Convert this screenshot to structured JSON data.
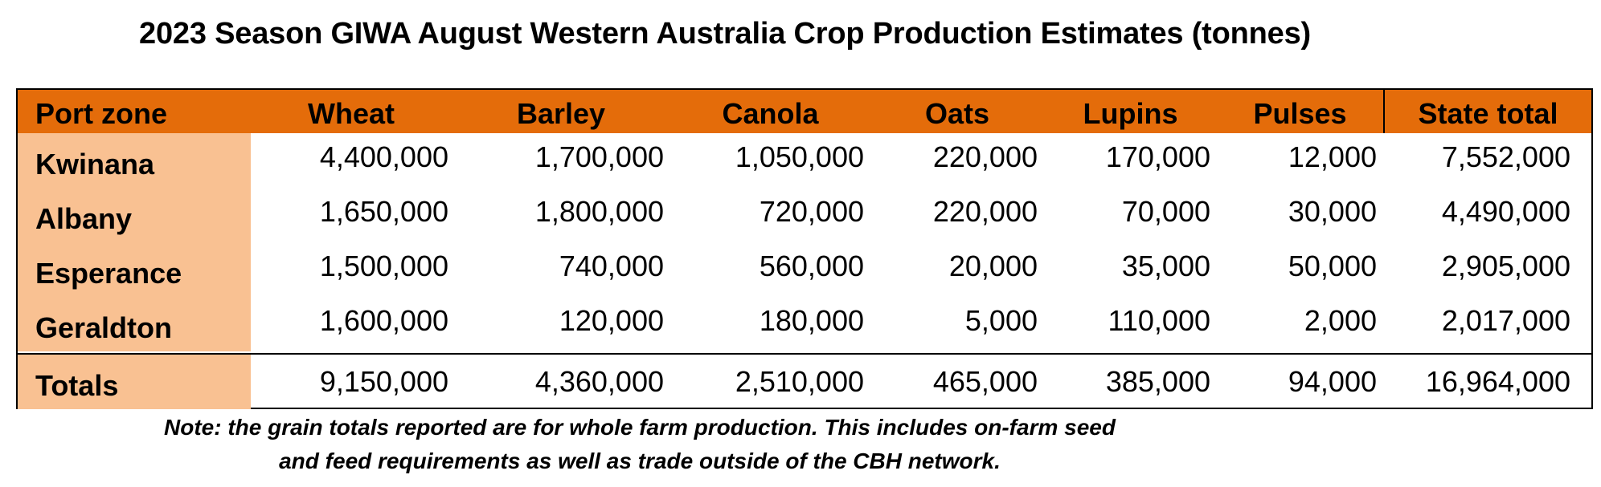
{
  "title": "2023 Season GIWA August Western Australia Crop Production Estimates (tonnes)",
  "colors": {
    "header_bg": "#e46c0a",
    "zone_column_bg": "#f9c192"
  },
  "table": {
    "headers": {
      "zone": "Port zone",
      "wheat": "Wheat",
      "barley": "Barley",
      "canola": "Canola",
      "oats": "Oats",
      "lupins": "Lupins",
      "pulses": "Pulses",
      "total": "State total"
    },
    "rows": [
      {
        "zone": "Kwinana",
        "wheat": "4,400,000",
        "barley": "1,700,000",
        "canola": "1,050,000",
        "oats": "220,000",
        "lupins": "170,000",
        "pulses": "12,000",
        "total": "7,552,000"
      },
      {
        "zone": "Albany",
        "wheat": "1,650,000",
        "barley": "1,800,000",
        "canola": "720,000",
        "oats": "220,000",
        "lupins": "70,000",
        "pulses": "30,000",
        "total": "4,490,000"
      },
      {
        "zone": "Esperance",
        "wheat": "1,500,000",
        "barley": "740,000",
        "canola": "560,000",
        "oats": "20,000",
        "lupins": "35,000",
        "pulses": "50,000",
        "total": "2,905,000"
      },
      {
        "zone": "Geraldton",
        "wheat": "1,600,000",
        "barley": "120,000",
        "canola": "180,000",
        "oats": "5,000",
        "lupins": "110,000",
        "pulses": "2,000",
        "total": "2,017,000"
      }
    ],
    "totals": {
      "zone": "Totals",
      "wheat": "9,150,000",
      "barley": "4,360,000",
      "canola": "2,510,000",
      "oats": "465,000",
      "lupins": "385,000",
      "pulses": "94,000",
      "total": "16,964,000"
    }
  },
  "note": {
    "line1": "Note: the grain totals reported are for whole farm production. This includes on-farm seed",
    "line2": "and feed requirements as well as trade outside of the CBH network."
  }
}
